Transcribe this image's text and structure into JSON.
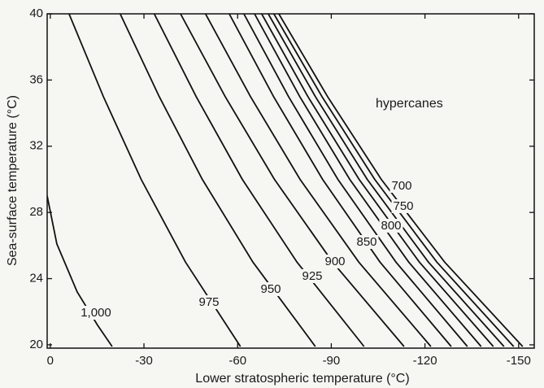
{
  "chart_data": {
    "type": "line",
    "xlabel": "Lower stratospheric temperature (°C)",
    "ylabel": "Sea-surface temperature (°C)",
    "annotation": "hypercanes",
    "xlim": [
      1,
      -155
    ],
    "ylim": [
      19.8,
      40
    ],
    "xticks": [
      0,
      -30,
      -60,
      -90,
      -120,
      -150
    ],
    "yticks": [
      20,
      24,
      28,
      32,
      36,
      40
    ],
    "color": "#111111",
    "series": [
      {
        "name": "1,000",
        "x": [
          1,
          -2.1,
          -8.6,
          -15.1,
          -19.8
        ],
        "values": [
          29,
          26.1,
          23.2,
          21.2,
          19.9
        ]
      },
      {
        "name": "975",
        "x": [
          -6,
          -17,
          -29.1,
          -43.3,
          -60.9
        ],
        "values": [
          40,
          35,
          30,
          25,
          19.9
        ]
      },
      {
        "name": "950",
        "x": [
          -22.4,
          -34.9,
          -48.7,
          -64.9,
          -84.9
        ],
        "values": [
          40,
          35,
          30,
          25,
          19.9
        ]
      },
      {
        "name": "925",
        "x": [
          -33.3,
          -46.7,
          -61.5,
          -79,
          -100.5
        ],
        "values": [
          40,
          35,
          30,
          25,
          19.9
        ]
      },
      {
        "name": "900",
        "x": [
          -41.7,
          -56,
          -71.8,
          -90.4,
          -113.3
        ],
        "values": [
          40,
          35,
          30,
          25,
          19.9
        ]
      },
      {
        "name": "850",
        "x": [
          -49.7,
          -64.1,
          -80,
          -98.8,
          -121.9
        ],
        "values": [
          40,
          35,
          30,
          25,
          19.9
        ]
      },
      {
        "x": [
          -57.3,
          -71.5,
          -87.2,
          -105.6,
          -128.4
        ],
        "values": [
          40,
          35,
          30,
          25,
          19.9
        ]
      },
      {
        "name": "800",
        "x": [
          -62,
          -76.3,
          -92.1,
          -110.7,
          -133.6
        ],
        "values": [
          40,
          35,
          30,
          25,
          19.9
        ]
      },
      {
        "x": [
          -65.4,
          -79.9,
          -95.9,
          -114.8,
          -138
        ],
        "values": [
          40,
          35,
          30,
          25,
          19.9
        ]
      },
      {
        "name": "750",
        "x": [
          -67.7,
          -82.5,
          -98.9,
          -118.2,
          -141.9
        ],
        "values": [
          40,
          35,
          30,
          25,
          19.9
        ]
      },
      {
        "x": [
          -69.8,
          -84.9,
          -101.5,
          -121.1,
          -145.3
        ],
        "values": [
          40,
          35,
          30,
          25,
          19.9
        ]
      },
      {
        "name": "700",
        "x": [
          -71.6,
          -87,
          -103.9,
          -123.8,
          -148.4
        ],
        "values": [
          40,
          35,
          30,
          25,
          19.9
        ]
      },
      {
        "x": [
          -73.2,
          -88.8,
          -106,
          -126.3,
          -151.3
        ],
        "values": [
          40,
          35,
          30,
          25,
          19.9
        ]
      }
    ]
  }
}
